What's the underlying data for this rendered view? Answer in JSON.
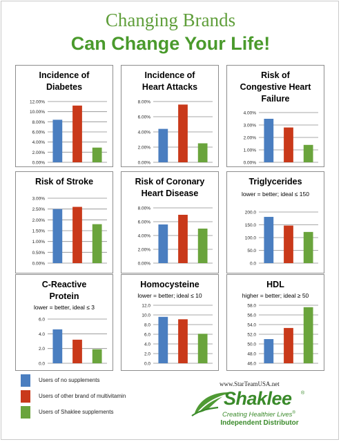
{
  "header": {
    "title_line1": "Changing Brands",
    "title_line2": "Can Change Your Life!"
  },
  "colors": {
    "no_supplements": "#4a7ec0",
    "other_brand": "#c9391a",
    "shaklee": "#6aa43c",
    "title_green": "#4a9a2c"
  },
  "legend": [
    {
      "label": "Users of no supplements",
      "color": "#4a7ec0"
    },
    {
      "label": "Users of other brand of multivitamin",
      "color": "#c9391a"
    },
    {
      "label": "Users of Shaklee supplements",
      "color": "#6aa43c"
    }
  ],
  "footer": {
    "website": "www.StarTeamUSA.net",
    "logo_word": "Shaklee",
    "logo_tagline": "Creating Healthier Lives",
    "logo_tagline_mark": "®",
    "logo_reg": "®",
    "distributor": "Independent Distributor"
  },
  "chart_data": [
    {
      "type": "bar",
      "title_lines": [
        "Incidence of",
        "Diabetes"
      ],
      "subtitle": "",
      "categories": [
        "Users of no supplements",
        "Users of other brand of multivitamin",
        "Users of Shaklee supplements"
      ],
      "values": [
        8.4,
        11.2,
        2.9
      ],
      "ylim": [
        0,
        12
      ],
      "ticks": [
        0,
        2,
        4,
        6,
        8,
        10,
        12
      ],
      "tick_labels": [
        "0.00%",
        "2.00%",
        "4.00%",
        "6.00%",
        "8.00%",
        "10.00%",
        "12.00%"
      ],
      "grid": true
    },
    {
      "type": "bar",
      "title_lines": [
        "Incidence of",
        "Heart Attacks"
      ],
      "subtitle": "",
      "categories": [
        "Users of no supplements",
        "Users of other brand of multivitamin",
        "Users of Shaklee supplements"
      ],
      "values": [
        4.4,
        7.6,
        2.5
      ],
      "ylim": [
        0,
        8
      ],
      "ticks": [
        0,
        2,
        4,
        6,
        8
      ],
      "tick_labels": [
        "0.00%",
        "2.00%",
        "4.00%",
        "6.00%",
        "8.00%"
      ],
      "grid": true
    },
    {
      "type": "bar",
      "title_lines": [
        "Risk of",
        "Congestive Heart",
        "Failure"
      ],
      "subtitle": "",
      "categories": [
        "Users of no supplements",
        "Users of other brand of multivitamin",
        "Users of Shaklee supplements"
      ],
      "values": [
        3.5,
        2.8,
        1.4
      ],
      "ylim": [
        0,
        4
      ],
      "ticks": [
        0,
        1,
        2,
        3,
        4
      ],
      "tick_labels": [
        "0.00%",
        "1.00%",
        "2.00%",
        "3.00%",
        "4.00%"
      ],
      "grid": true
    },
    {
      "type": "bar",
      "title_lines": [
        "Risk of Stroke"
      ],
      "subtitle": "",
      "categories": [
        "Users of no supplements",
        "Users of other brand of multivitamin",
        "Users of Shaklee supplements"
      ],
      "values": [
        2.5,
        2.6,
        1.8
      ],
      "ylim": [
        0,
        3
      ],
      "ticks": [
        0,
        0.5,
        1,
        1.5,
        2,
        2.5,
        3
      ],
      "tick_labels": [
        "0.00%",
        "0.50%",
        "1.00%",
        "1.50%",
        "2.00%",
        "2.50%",
        "3.00%"
      ],
      "grid": true
    },
    {
      "type": "bar",
      "title_lines": [
        "Risk of Coronary",
        "Heart Disease"
      ],
      "subtitle": "",
      "categories": [
        "Users of no supplements",
        "Users of other brand of multivitamin",
        "Users of Shaklee supplements"
      ],
      "values": [
        5.6,
        7.0,
        5.0
      ],
      "ylim": [
        0,
        8
      ],
      "ticks": [
        0,
        2,
        4,
        6,
        8
      ],
      "tick_labels": [
        "0.00%",
        "2.00%",
        "4.00%",
        "6.00%",
        "8.00%"
      ],
      "grid": true
    },
    {
      "type": "bar",
      "title_lines": [
        "Triglycerides"
      ],
      "subtitle": "lower = better; ideal ≤ 150",
      "categories": [
        "Users of no supplements",
        "Users of other brand of multivitamin",
        "Users of Shaklee supplements"
      ],
      "values": [
        181,
        147,
        122
      ],
      "ylim": [
        0,
        200
      ],
      "ticks": [
        0,
        50,
        100,
        150,
        200
      ],
      "tick_labels": [
        "0.0",
        "50.0",
        "100.0",
        "150.0",
        "200.0"
      ],
      "grid": true
    },
    {
      "type": "bar",
      "title_lines": [
        "C-Reactive",
        "Protein"
      ],
      "subtitle": "lower = better, ideal  ≤ 3",
      "categories": [
        "Users of no supplements",
        "Users of other brand of multivitamin",
        "Users of Shaklee supplements"
      ],
      "values": [
        4.6,
        3.2,
        1.9
      ],
      "ylim": [
        0,
        6
      ],
      "ticks": [
        0,
        2,
        4,
        6
      ],
      "tick_labels": [
        "0.0",
        "2.0",
        "4.0",
        "6.0"
      ],
      "grid": true
    },
    {
      "type": "bar",
      "title_lines": [
        "Homocysteine"
      ],
      "subtitle": "lower = better; ideal ≤ 10",
      "categories": [
        "Users of no supplements",
        "Users of other brand of multivitamin",
        "Users of Shaklee supplements"
      ],
      "values": [
        9.6,
        9.1,
        6.1
      ],
      "ylim": [
        0,
        12
      ],
      "ticks": [
        0,
        2,
        4,
        6,
        8,
        10,
        12
      ],
      "tick_labels": [
        "0.0",
        "2.0",
        "4.0",
        "6.0",
        "8.0",
        "10.0",
        "12.0"
      ],
      "grid": true
    },
    {
      "type": "bar",
      "title_lines": [
        "HDL"
      ],
      "subtitle": "higher = better; ideal ≥ 50",
      "categories": [
        "Users of no supplements",
        "Users of other brand of multivitamin",
        "Users of Shaklee supplements"
      ],
      "values": [
        51.0,
        53.3,
        57.6
      ],
      "ylim": [
        46,
        58
      ],
      "ticks": [
        46,
        48,
        50,
        52,
        54,
        56,
        58
      ],
      "tick_labels": [
        "46.0",
        "48.0",
        "50.0",
        "52.0",
        "54.0",
        "56.0",
        "58.0"
      ],
      "grid": true
    }
  ]
}
